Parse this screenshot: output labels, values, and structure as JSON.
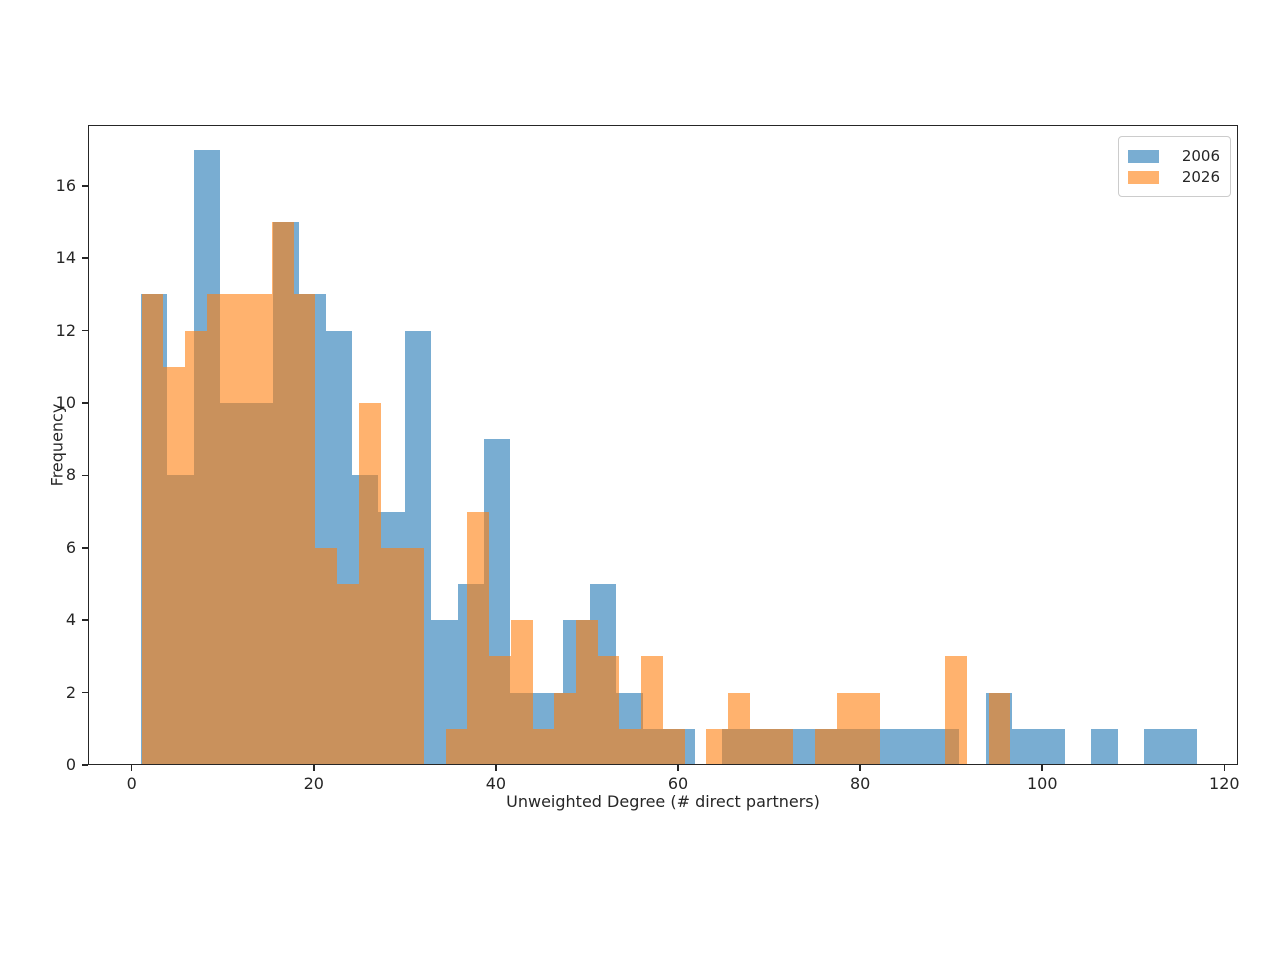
{
  "chart_data": {
    "type": "bar",
    "subtype": "overlaid-histogram",
    "title": "",
    "xlabel": "Unweighted Degree (# direct partners)",
    "ylabel": "Frequency",
    "x_ticks": [
      0,
      20,
      40,
      60,
      80,
      100,
      120
    ],
    "y_ticks": [
      0,
      2,
      4,
      6,
      8,
      10,
      12,
      14,
      16
    ],
    "xlim": [
      -4.8,
      121.5
    ],
    "ylim": [
      0,
      17.68
    ],
    "grid": "off",
    "legend": {
      "position": "top-right",
      "entries": [
        {
          "label": "2006",
          "color": "#79ADD2"
        },
        {
          "label": "2026",
          "color": "#FFB26E"
        }
      ]
    },
    "series": [
      {
        "name": "2006",
        "fill": "#79ADD2",
        "bin_start": 1.0,
        "bin_width": 2.9,
        "counts": [
          13,
          8,
          17,
          10,
          10,
          15,
          13,
          12,
          8,
          7,
          12,
          4,
          5,
          9,
          2,
          2,
          4,
          5,
          2,
          1,
          1,
          0,
          1,
          1,
          1,
          1,
          1,
          1,
          1,
          1,
          1,
          0,
          2,
          1,
          1,
          0,
          1,
          0,
          1,
          1
        ]
      },
      {
        "name": "2026",
        "fill": "rgba(255,127,14,0.6)",
        "bin_start": 1.1,
        "bin_width": 2.385,
        "counts": [
          13,
          11,
          12,
          13,
          13,
          13,
          15,
          13,
          6,
          5,
          10,
          6,
          6,
          0,
          1,
          7,
          3,
          4,
          1,
          2,
          4,
          3,
          1,
          3,
          1,
          0,
          1,
          2,
          1,
          1,
          0,
          1,
          2,
          2,
          0,
          0,
          0,
          3,
          0,
          2
        ]
      }
    ]
  }
}
